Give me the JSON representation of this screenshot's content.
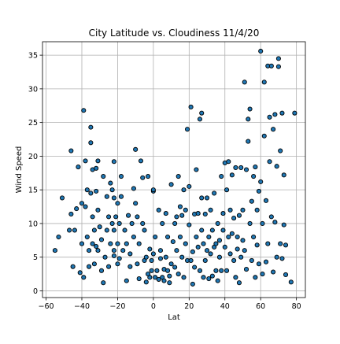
{
  "chart_data": {
    "type": "scatter",
    "title": "City Latitude vs. Cloudiness 11/4/20",
    "xlabel": "Lat",
    "ylabel": "Wind Speed",
    "xlim": [
      -62,
      85
    ],
    "ylim": [
      -1,
      37
    ],
    "xticks": [
      -60,
      -40,
      -20,
      0,
      20,
      40,
      60,
      80
    ],
    "yticks": [
      0,
      5,
      10,
      15,
      20,
      25,
      30,
      35
    ],
    "grid": true,
    "legend": "none",
    "marker_fill": "#1f77b4",
    "marker_edge": "#000000",
    "points": [
      [
        -55,
        6
      ],
      [
        -53,
        8
      ],
      [
        -51,
        13.8
      ],
      [
        -47,
        9
      ],
      [
        -46,
        20.8
      ],
      [
        -46,
        11.4
      ],
      [
        -45,
        3.6
      ],
      [
        -44,
        9
      ],
      [
        -43,
        12.2
      ],
      [
        -42,
        18.4
      ],
      [
        -41,
        2.7
      ],
      [
        -40,
        7
      ],
      [
        -40,
        13
      ],
      [
        -39,
        26.8
      ],
      [
        -39,
        2
      ],
      [
        -38,
        19.3
      ],
      [
        -38,
        12.5
      ],
      [
        -37,
        15
      ],
      [
        -37,
        8
      ],
      [
        -36,
        6
      ],
      [
        -36,
        3.6
      ],
      [
        -35,
        22
      ],
      [
        -35,
        24.3
      ],
      [
        -35,
        14.5
      ],
      [
        -34,
        18
      ],
      [
        -34,
        11
      ],
      [
        -34,
        7
      ],
      [
        -33,
        9
      ],
      [
        -33,
        4
      ],
      [
        -32,
        18.2
      ],
      [
        -32,
        14.8
      ],
      [
        -32,
        6.6
      ],
      [
        -31,
        19.3
      ],
      [
        -31,
        12
      ],
      [
        -31,
        6
      ],
      [
        -30,
        9.5
      ],
      [
        -29,
        7.6
      ],
      [
        -29,
        3
      ],
      [
        -28,
        1.2
      ],
      [
        -28,
        17
      ],
      [
        -27,
        5
      ],
      [
        -26,
        9
      ],
      [
        -26,
        14
      ],
      [
        -25,
        11
      ],
      [
        -25,
        3.6
      ],
      [
        -24,
        7
      ],
      [
        -24,
        16
      ],
      [
        -23,
        15
      ],
      [
        -23,
        10
      ],
      [
        -22,
        19.2
      ],
      [
        -22,
        13.8
      ],
      [
        -22,
        9
      ],
      [
        -22,
        6
      ],
      [
        -22,
        5.2
      ],
      [
        -21,
        11
      ],
      [
        -20,
        7
      ],
      [
        -20,
        4
      ],
      [
        -20,
        13
      ],
      [
        -19,
        4.8
      ],
      [
        -19,
        10
      ],
      [
        -18,
        17
      ],
      [
        -18,
        14
      ],
      [
        -17,
        6
      ],
      [
        -16,
        9
      ],
      [
        -15,
        7
      ],
      [
        -15,
        1.5
      ],
      [
        -14,
        11.2
      ],
      [
        -13,
        3.6
      ],
      [
        -13,
        5.5
      ],
      [
        -12,
        10
      ],
      [
        -11,
        15.2
      ],
      [
        -11,
        8
      ],
      [
        -10,
        21
      ],
      [
        -10,
        13
      ],
      [
        -9,
        11
      ],
      [
        -9,
        4
      ],
      [
        -8,
        7
      ],
      [
        -8,
        1.8
      ],
      [
        -7,
        19.3
      ],
      [
        -6,
        16.8
      ],
      [
        -6,
        10
      ],
      [
        -5,
        9
      ],
      [
        -5,
        4.5
      ],
      [
        -4,
        1.3
      ],
      [
        -4,
        5
      ],
      [
        -3,
        17
      ],
      [
        -3,
        2.5
      ],
      [
        -2,
        2
      ],
      [
        -2,
        6.2
      ],
      [
        -1,
        3
      ],
      [
        -1,
        4.5
      ],
      [
        0,
        14.8
      ],
      [
        0,
        15
      ],
      [
        0,
        5.5
      ],
      [
        1,
        2
      ],
      [
        1,
        8
      ],
      [
        2,
        3
      ],
      [
        3,
        12
      ],
      [
        3,
        1.7
      ],
      [
        4,
        6
      ],
      [
        4,
        4.8
      ],
      [
        5,
        2
      ],
      [
        5,
        10
      ],
      [
        6,
        1.5
      ],
      [
        6,
        3.2
      ],
      [
        7,
        11.5
      ],
      [
        7,
        5
      ],
      [
        8,
        3
      ],
      [
        8,
        8
      ],
      [
        9,
        2.2
      ],
      [
        9,
        1.2
      ],
      [
        10,
        15.8
      ],
      [
        10,
        4
      ],
      [
        11,
        7.3
      ],
      [
        12,
        10
      ],
      [
        12,
        3.5
      ],
      [
        13,
        6
      ],
      [
        13,
        11
      ],
      [
        14,
        17
      ],
      [
        14,
        2.5
      ],
      [
        15,
        12.5
      ],
      [
        15,
        8
      ],
      [
        16,
        5
      ],
      [
        16,
        11.2
      ],
      [
        17,
        15
      ],
      [
        17,
        2
      ],
      [
        18,
        7
      ],
      [
        18,
        12
      ],
      [
        19,
        24
      ],
      [
        19,
        4.5
      ],
      [
        20,
        9.8
      ],
      [
        20,
        15.5
      ],
      [
        21,
        27.3
      ],
      [
        21,
        4.5
      ],
      [
        22,
        5.8
      ],
      [
        22,
        1
      ],
      [
        23,
        11.4
      ],
      [
        23,
        3.5
      ],
      [
        24,
        8
      ],
      [
        24,
        18
      ],
      [
        25,
        6.5
      ],
      [
        25,
        11.5
      ],
      [
        26,
        25.5
      ],
      [
        26,
        3
      ],
      [
        27,
        26.4
      ],
      [
        27,
        13.8
      ],
      [
        27,
        9
      ],
      [
        28,
        7
      ],
      [
        28,
        2
      ],
      [
        29,
        11.4
      ],
      [
        29,
        4.5
      ],
      [
        30,
        13.8
      ],
      [
        30,
        6
      ],
      [
        31,
        1.8
      ],
      [
        31,
        8
      ],
      [
        32,
        5.5
      ],
      [
        32,
        12
      ],
      [
        33,
        9
      ],
      [
        33,
        2.2
      ],
      [
        34,
        14.5
      ],
      [
        34,
        6.5
      ],
      [
        35,
        7
      ],
      [
        35,
        3
      ],
      [
        36,
        10
      ],
      [
        36,
        1.5
      ],
      [
        37,
        7.5
      ],
      [
        37,
        5
      ],
      [
        38,
        17
      ],
      [
        38,
        3
      ],
      [
        39,
        11.5
      ],
      [
        39,
        9
      ],
      [
        40,
        19
      ],
      [
        40,
        6.5
      ],
      [
        41,
        15
      ],
      [
        41,
        3
      ],
      [
        42,
        8
      ],
      [
        42,
        19.2
      ],
      [
        43,
        12
      ],
      [
        43,
        5.5
      ],
      [
        44,
        17.2
      ],
      [
        44,
        8.5
      ],
      [
        45,
        10.8
      ],
      [
        45,
        4.5
      ],
      [
        46,
        18.3
      ],
      [
        46,
        2
      ],
      [
        47,
        8
      ],
      [
        47,
        6.2
      ],
      [
        48,
        11.2
      ],
      [
        48,
        1.2
      ],
      [
        49,
        18.3
      ],
      [
        49,
        5
      ],
      [
        50,
        7.5
      ],
      [
        50,
        12
      ],
      [
        51,
        31
      ],
      [
        51,
        6
      ],
      [
        52,
        18
      ],
      [
        52,
        3.2
      ],
      [
        53,
        22.2
      ],
      [
        53,
        25.5
      ],
      [
        54,
        27
      ],
      [
        54,
        10
      ],
      [
        55,
        13.3
      ],
      [
        55,
        4.5
      ],
      [
        56,
        17
      ],
      [
        56,
        8
      ],
      [
        57,
        18.4
      ],
      [
        57,
        2
      ],
      [
        58,
        12
      ],
      [
        58,
        6.8
      ],
      [
        59,
        14.8
      ],
      [
        59,
        4
      ],
      [
        60,
        35.6
      ],
      [
        60,
        16.2
      ],
      [
        61,
        10
      ],
      [
        61,
        2.5
      ],
      [
        62,
        31
      ],
      [
        62,
        23
      ],
      [
        63,
        13.4
      ],
      [
        63,
        4.3
      ],
      [
        64,
        33.4
      ],
      [
        64,
        7
      ],
      [
        65,
        25.8
      ],
      [
        65,
        19.2
      ],
      [
        66,
        33.4
      ],
      [
        66,
        11
      ],
      [
        67,
        24
      ],
      [
        67,
        2.8
      ],
      [
        68,
        26.2
      ],
      [
        68,
        10.2
      ],
      [
        69,
        18.5
      ],
      [
        69,
        5
      ],
      [
        70,
        34.5
      ],
      [
        70,
        33.3
      ],
      [
        71,
        20.8
      ],
      [
        71,
        7
      ],
      [
        72,
        26.4
      ],
      [
        72,
        4.8
      ],
      [
        73,
        17.2
      ],
      [
        73,
        9.8
      ],
      [
        74,
        6.8
      ],
      [
        74,
        2.4
      ],
      [
        77,
        1.3
      ],
      [
        79,
        26.4
      ]
    ]
  }
}
